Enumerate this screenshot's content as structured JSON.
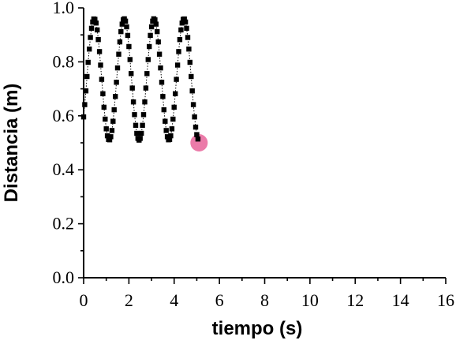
{
  "chart_data": {
    "type": "scatter",
    "xlabel": "tiempo (s)",
    "ylabel": "Distancia (m)",
    "xlim": [
      0,
      16
    ],
    "ylim": [
      0.0,
      1.0
    ],
    "x_ticks": [
      "0",
      "2",
      "4",
      "6",
      "8",
      "10",
      "12",
      "14",
      "16"
    ],
    "y_ticks": [
      "0.0",
      "0.2",
      "0.4",
      "0.6",
      "0.8",
      "1.0"
    ],
    "x_tick_values": [
      0,
      2,
      4,
      6,
      8,
      10,
      12,
      14,
      16
    ],
    "y_tick_values": [
      0.0,
      0.2,
      0.4,
      0.6,
      0.8,
      1.0
    ],
    "grid": false,
    "oscillation": {
      "center": 0.735,
      "amplitude": 0.225,
      "period": 1.32,
      "phase_time": 0.47,
      "t_start": 0.0,
      "t_end": 5.05,
      "dt": 0.05
    },
    "highlight_point": {
      "x": 5.1,
      "y": 0.5
    },
    "marker_color": "#000000",
    "highlight_color": "#e8649a"
  }
}
